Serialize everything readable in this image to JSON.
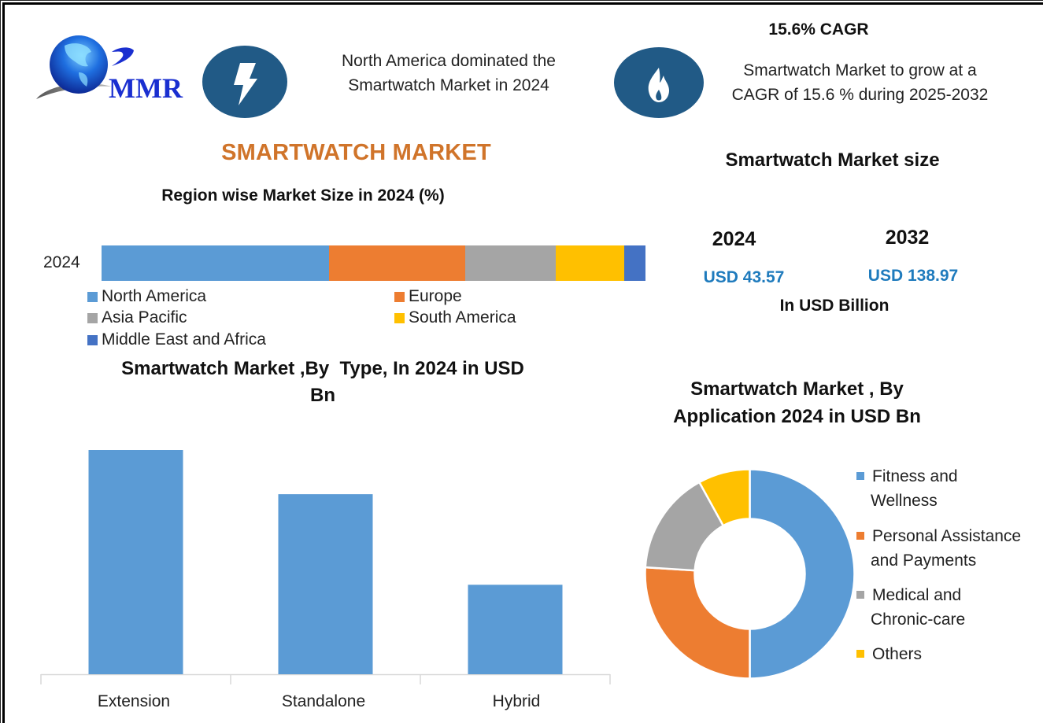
{
  "header": {
    "logo_text": "MMR",
    "dominance_text_line1": "North America dominated the",
    "dominance_text_line2": "Smartwatch Market in 2024",
    "cagr_title": "15.6% CAGR",
    "cagr_text_line1": "Smartwatch Market to grow at a",
    "cagr_text_line2": "CAGR of 15.6 % during 2025-2032",
    "icons": [
      "lightning-icon",
      "flame-icon"
    ],
    "icon_color": "#215a86"
  },
  "main_title": "SMARTWATCH MARKET",
  "market_size": {
    "title": "Smartwatch Market size",
    "year_a": "2024",
    "value_a": "USD 43.57",
    "year_b": "2032",
    "value_b": "USD 138.97",
    "unit": "In USD Billion",
    "value_color": "#1f7bbd"
  },
  "chart_data": [
    {
      "type": "bar",
      "stacked": true,
      "orientation": "horizontal",
      "title": "Region wise Market Size in 2024 (%)",
      "categories": [
        "2024"
      ],
      "series": [
        {
          "name": "North America",
          "values": [
            41.8
          ],
          "color": "#5b9bd5"
        },
        {
          "name": "Europe",
          "values": [
            25.0
          ],
          "color": "#ed7d31"
        },
        {
          "name": "Asia Pacific",
          "values": [
            16.7
          ],
          "color": "#a5a5a5"
        },
        {
          "name": "South America",
          "values": [
            12.6
          ],
          "color": "#ffc000"
        },
        {
          "name": "Middle East and Africa",
          "values": [
            3.9
          ],
          "color": "#4472c4"
        }
      ],
      "xlim": [
        0,
        100
      ],
      "legend": "bottom"
    },
    {
      "type": "bar",
      "title_line1": "Smartwatch Market ,By  Type, In 2024 in USD",
      "title_line2": "Bn",
      "categories": [
        "Extension",
        "Standalone",
        "Hybrid"
      ],
      "values": [
        19.8,
        15.9,
        7.9
      ],
      "color": "#5b9bd5",
      "ylim": [
        0,
        21
      ],
      "grid": false
    },
    {
      "type": "pie",
      "donut": true,
      "title_line1": "Smartwatch Market , By",
      "title_line2": "Application 2024 in USD Bn",
      "labels": [
        {
          "line1": "Fitness and",
          "line2": "Wellness"
        },
        {
          "line1": "Personal Assistance",
          "line2": "and Payments"
        },
        {
          "line1": "Medical and",
          "line2": "Chronic-care"
        },
        {
          "line1": "Others",
          "line2": ""
        }
      ],
      "values": [
        50.0,
        26.0,
        16.0,
        8.0
      ],
      "colors": [
        "#5b9bd5",
        "#ed7d31",
        "#a5a5a5",
        "#ffc000"
      ],
      "legend": "right"
    }
  ]
}
